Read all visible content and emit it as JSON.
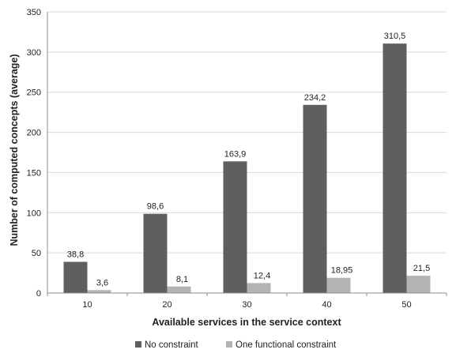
{
  "chart_data": {
    "type": "bar",
    "categories": [
      "10",
      "20",
      "30",
      "40",
      "50"
    ],
    "series": [
      {
        "name": "No constraint",
        "values": [
          38.8,
          98.6,
          163.9,
          234.2,
          310.5
        ],
        "labels": [
          "38,8",
          "98,6",
          "163,9",
          "234,2",
          "310,5"
        ],
        "color": "#5f5f5f"
      },
      {
        "name": "One functional constraint",
        "values": [
          3.6,
          8.1,
          12.4,
          18.95,
          21.5
        ],
        "labels": [
          "3,6",
          "8,1",
          "12,4",
          "18,95",
          "21,5"
        ],
        "color": "#b3b3b3"
      }
    ],
    "xlabel": "Available services in the service context",
    "ylabel": "Number of computed concepts (average)",
    "ylim": [
      0,
      350
    ],
    "yticks": [
      0,
      50,
      100,
      150,
      200,
      250,
      300,
      350
    ],
    "grid": true,
    "legend_position": "bottom",
    "colors": {
      "grid": "#d9d9d9",
      "axis": "#8c8c8c",
      "text": "#222222"
    }
  }
}
